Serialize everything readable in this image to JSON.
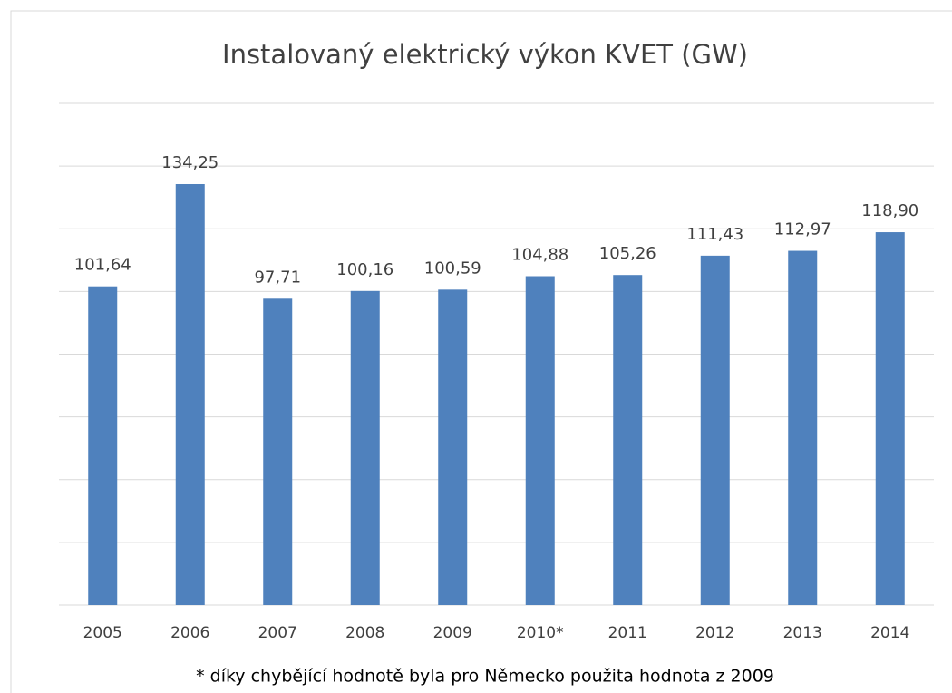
{
  "chart_data": {
    "type": "bar",
    "title": "Instalovaný elektrický výkon KVET (GW)",
    "categories": [
      "2005",
      "2006",
      "2007",
      "2008",
      "2009",
      "2010*",
      "2011",
      "2012",
      "2013",
      "2014"
    ],
    "values": [
      101.64,
      134.25,
      97.71,
      100.16,
      100.59,
      104.88,
      105.26,
      111.43,
      112.97,
      118.9
    ],
    "value_labels": [
      "101,64",
      "134,25",
      "97,71",
      "100,16",
      "100,59",
      "104,88",
      "105,26",
      "111,43",
      "112,97",
      "118,90"
    ],
    "color": "#4f81bd",
    "ylim": [
      0,
      160
    ],
    "yticks": [
      0,
      20,
      40,
      60,
      80,
      100,
      120,
      140,
      160
    ],
    "grid": true,
    "annotation": "* díky chybějící hodnotě byla pro Německo použita hodnota z 2009"
  }
}
